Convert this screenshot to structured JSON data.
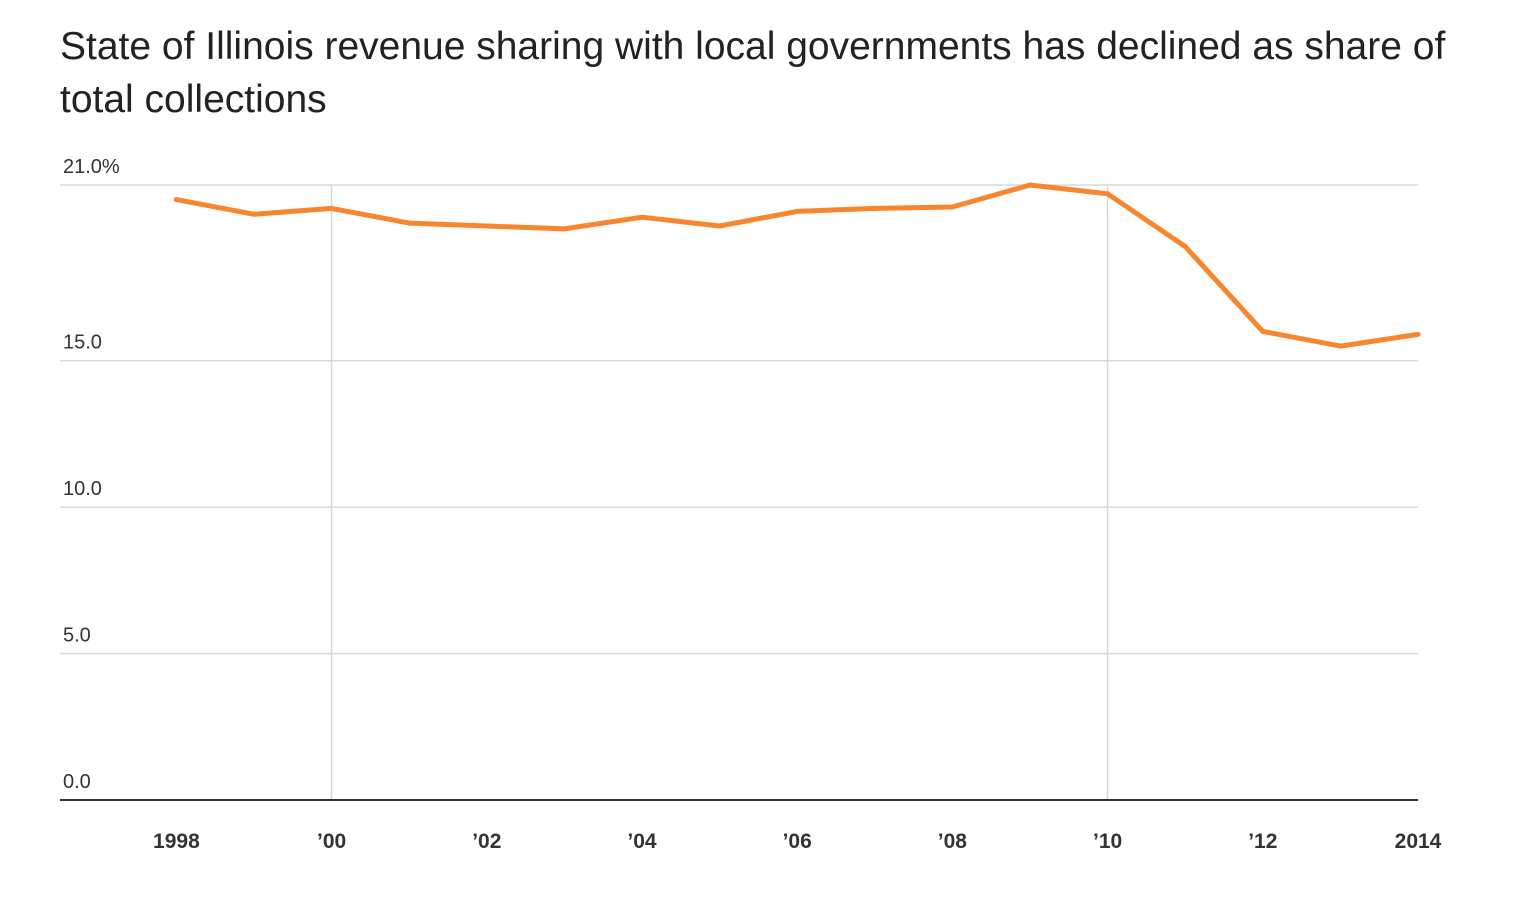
{
  "chart_data": {
    "type": "line",
    "title": "State of Illinois revenue sharing with local governments has declined as share of total collections",
    "xlabel": "",
    "ylabel": "",
    "ylim": [
      0,
      21
    ],
    "yticks": [
      {
        "value": 21,
        "label": "21.0%"
      },
      {
        "value": 15,
        "label": "15.0"
      },
      {
        "value": 10,
        "label": "10.0"
      },
      {
        "value": 5,
        "label": "5.0"
      },
      {
        "value": 0,
        "label": "0.0"
      }
    ],
    "xlim": [
      1996.5,
      2014
    ],
    "xticks": [
      {
        "value": 1998,
        "label": "1998"
      },
      {
        "value": 2000,
        "label": "’00"
      },
      {
        "value": 2002,
        "label": "’02"
      },
      {
        "value": 2004,
        "label": "’04"
      },
      {
        "value": 2006,
        "label": "’06"
      },
      {
        "value": 2008,
        "label": "’08"
      },
      {
        "value": 2010,
        "label": "’10"
      },
      {
        "value": 2012,
        "label": "’12"
      },
      {
        "value": 2014,
        "label": "2014"
      }
    ],
    "vertical_gridlines": [
      2000,
      2010
    ],
    "grid": true,
    "color": "#f7862f",
    "series": [
      {
        "x": [
          1998,
          1999,
          2000,
          2001,
          2002,
          2003,
          2004,
          2005,
          2006,
          2007,
          2008,
          2009,
          2010,
          2011,
          2012,
          2013,
          2014
        ],
        "values": [
          20.5,
          20.0,
          20.2,
          19.7,
          19.6,
          19.5,
          19.9,
          19.6,
          20.1,
          20.2,
          20.25,
          21.0,
          20.7,
          18.9,
          16.0,
          15.5,
          15.9
        ]
      }
    ]
  }
}
